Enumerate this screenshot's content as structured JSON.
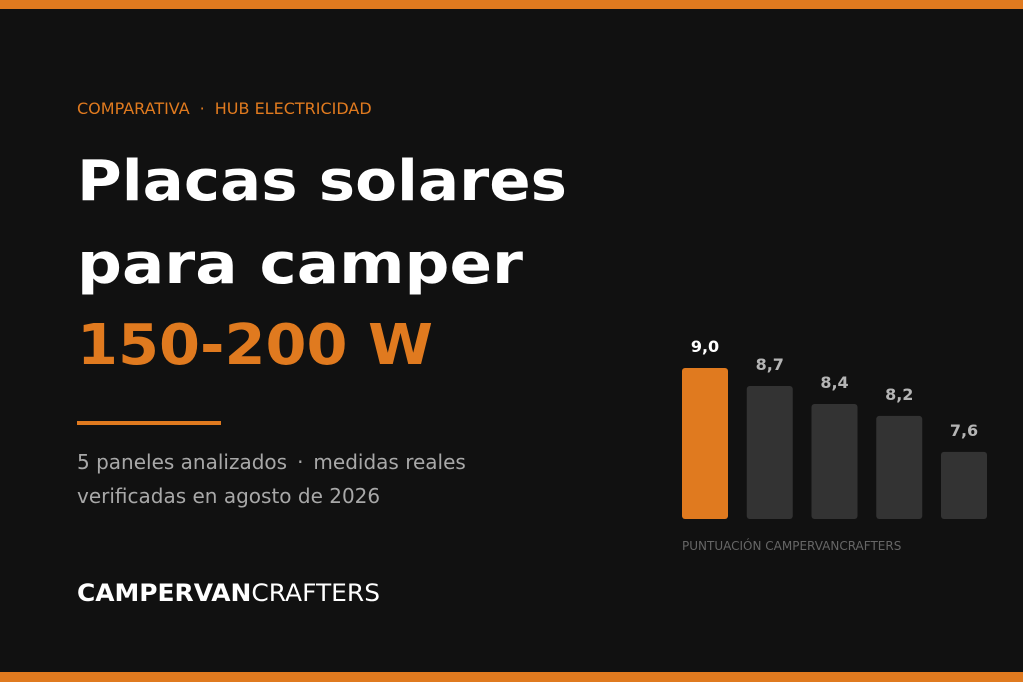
{
  "header": {
    "kicker_left": "COMPARATIVA",
    "separator": "·",
    "kicker_right": "HUB ELECTRICIDAD"
  },
  "title": {
    "line1": "Placas solares",
    "line2": "para camper",
    "highlight": "150-200 W"
  },
  "subtitle": {
    "part1": "5 paneles analizados",
    "separator": "·",
    "part2": "medidas reales",
    "line2": "verificadas en agosto de 2026"
  },
  "chart": {
    "type": "bar",
    "values": [
      9.0,
      8.7,
      8.4,
      8.2,
      7.6
    ],
    "value_labels": [
      "9,0",
      "8,7",
      "8,4",
      "8,2",
      "7,6"
    ],
    "colors": [
      "#e07a1f",
      "#333333",
      "#333333",
      "#333333",
      "#333333"
    ],
    "label_colors": [
      "#ffffff",
      "#b5b5b5",
      "#b5b5b5",
      "#b5b5b5",
      "#b5b5b5"
    ],
    "ylim": [
      6.48,
      9.0
    ],
    "caption": "PUNTUACIÓN CAMPERVANCRAFTERS"
  },
  "brand": {
    "bold": "CAMPERVAN",
    "light": "CRAFTERS"
  }
}
